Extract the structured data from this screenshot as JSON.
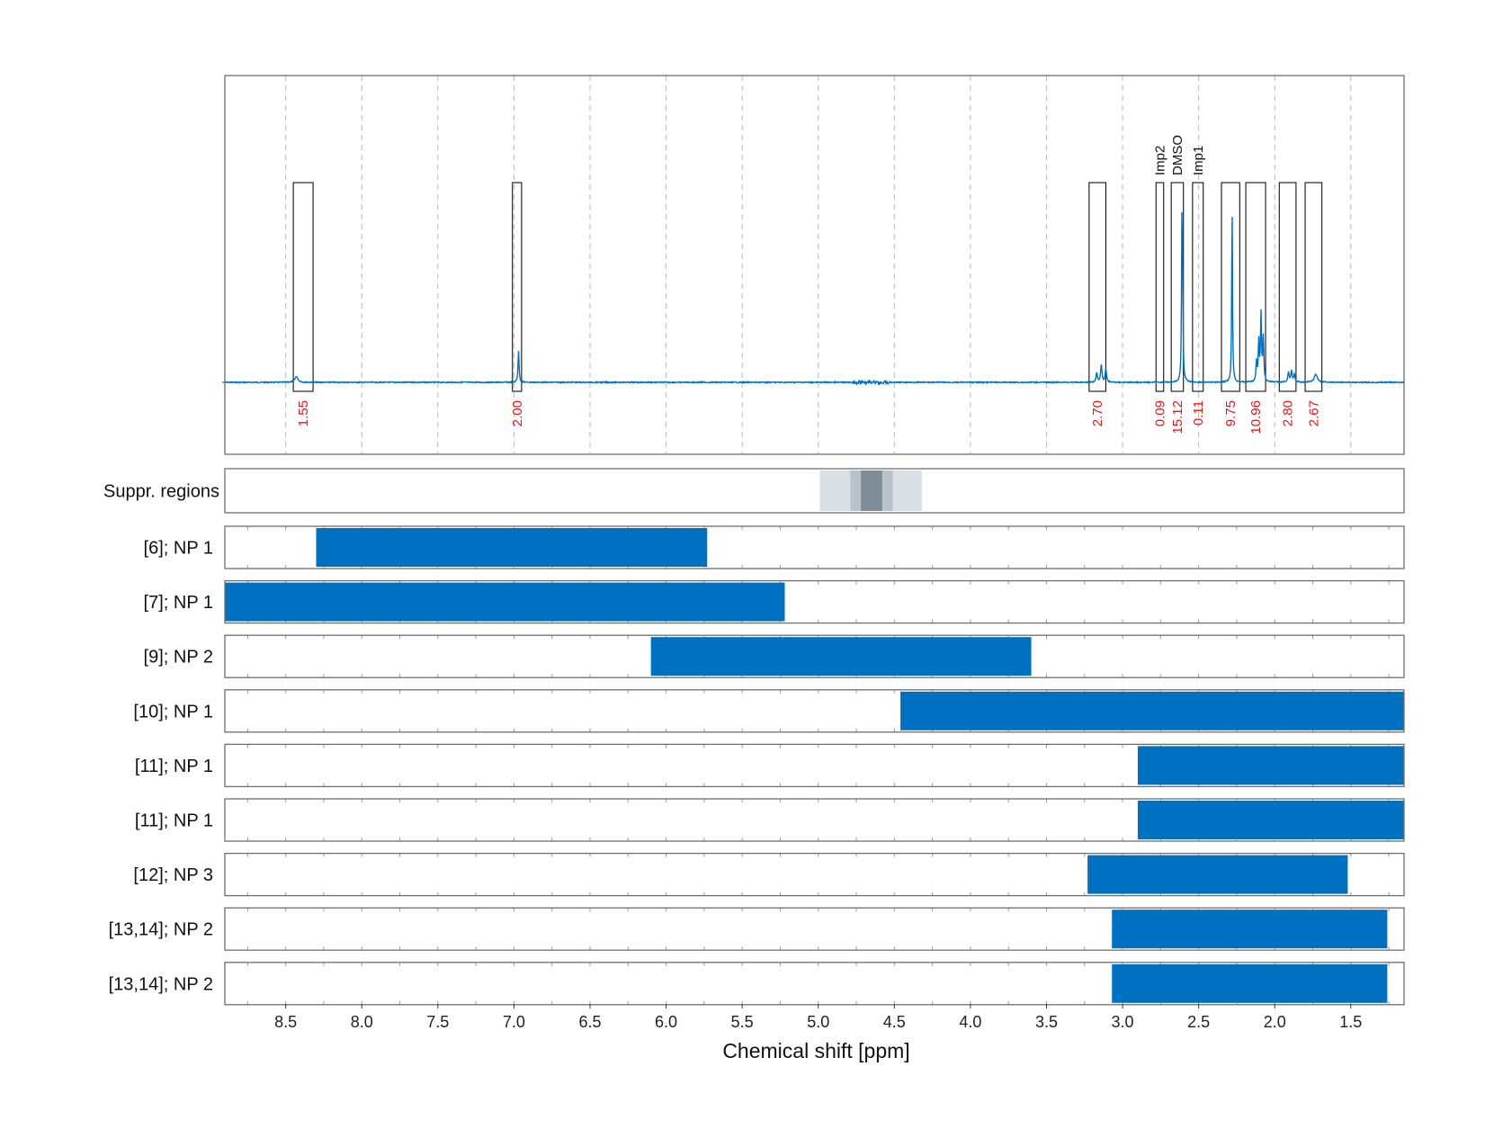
{
  "chart_data": {
    "type": "nmr-spectrum-with-range-bars",
    "xlabel": "Chemical shift [ppm]",
    "xlim": [
      8.9,
      1.15
    ],
    "x_ticks": [
      8.5,
      8.0,
      7.5,
      7.0,
      6.5,
      6.0,
      5.5,
      5.0,
      4.5,
      4.0,
      3.5,
      3.0,
      2.5,
      2.0,
      1.5
    ],
    "x_tick_labels": [
      "8.5",
      "8.0",
      "7.5",
      "7.0",
      "6.5",
      "6.0",
      "5.5",
      "5.0",
      "4.5",
      "4.0",
      "3.5",
      "3.0",
      "2.5",
      "2.0",
      "1.5"
    ],
    "grid": "vertical dashed",
    "series_color": "#0070c0",
    "spectrum_peaks": [
      {
        "ppm": 8.43,
        "height": 0.03,
        "width": 0.012
      },
      {
        "ppm": 6.97,
        "height": 0.16,
        "width": 0.004
      },
      {
        "ppm": 3.14,
        "height": 0.09,
        "width": 0.005
      },
      {
        "ppm": 3.11,
        "height": 0.07,
        "width": 0.005
      },
      {
        "ppm": 3.17,
        "height": 0.05,
        "width": 0.005
      },
      {
        "ppm": 2.61,
        "height": 0.75,
        "width": 0.003
      },
      {
        "ppm": 2.605,
        "height": 0.45,
        "width": 0.003
      },
      {
        "ppm": 2.28,
        "height": 0.91,
        "width": 0.003
      },
      {
        "ppm": 2.09,
        "height": 0.34,
        "width": 0.004
      },
      {
        "ppm": 2.075,
        "height": 0.22,
        "width": 0.004
      },
      {
        "ppm": 2.105,
        "height": 0.2,
        "width": 0.004
      },
      {
        "ppm": 2.12,
        "height": 0.1,
        "width": 0.004
      },
      {
        "ppm": 1.89,
        "height": 0.06,
        "width": 0.005
      },
      {
        "ppm": 1.91,
        "height": 0.05,
        "width": 0.005
      },
      {
        "ppm": 1.87,
        "height": 0.04,
        "width": 0.005
      },
      {
        "ppm": 1.73,
        "height": 0.04,
        "width": 0.012
      }
    ],
    "integration_regions": [
      {
        "from": 8.45,
        "to": 8.32,
        "integral": "1.55",
        "label": ""
      },
      {
        "from": 7.01,
        "to": 6.95,
        "integral": "2.00",
        "label": ""
      },
      {
        "from": 3.22,
        "to": 3.11,
        "integral": "2.70",
        "label": ""
      },
      {
        "from": 2.78,
        "to": 2.73,
        "integral": "0.09",
        "label": "Imp2"
      },
      {
        "from": 2.68,
        "to": 2.6,
        "integral": "15.12",
        "label": "DMSO"
      },
      {
        "from": 2.54,
        "to": 2.47,
        "integral": "0.11",
        "label": "Imp1"
      },
      {
        "from": 2.35,
        "to": 2.23,
        "integral": "9.75",
        "label": ""
      },
      {
        "from": 2.19,
        "to": 2.06,
        "integral": "10.96",
        "label": ""
      },
      {
        "from": 1.97,
        "to": 1.86,
        "integral": "2.80",
        "label": ""
      },
      {
        "from": 1.8,
        "to": 1.69,
        "integral": "2.67",
        "label": ""
      }
    ],
    "suppressed_regions": {
      "label": "Suppr. regions",
      "bands": [
        {
          "from": 4.99,
          "to": 4.32,
          "color": "#d8dfe5"
        },
        {
          "from": 4.79,
          "to": 4.51,
          "color": "#b7c3cc"
        },
        {
          "from": 4.72,
          "to": 4.58,
          "color": "#7d8c96"
        }
      ]
    },
    "range_rows": [
      {
        "label": "[6]; NP 1",
        "from": 8.3,
        "to": 5.73
      },
      {
        "label": "[7]; NP 1",
        "from": 8.9,
        "to": 5.22
      },
      {
        "label": "[9]; NP 2",
        "from": 6.1,
        "to": 3.6
      },
      {
        "label": "[10]; NP 1",
        "from": 4.46,
        "to": 1.15
      },
      {
        "label": "[11]; NP 1",
        "from": 2.9,
        "to": 1.15
      },
      {
        "label": "[11]; NP 1",
        "from": 2.9,
        "to": 1.15
      },
      {
        "label": "[12]; NP 3",
        "from": 3.23,
        "to": 1.52
      },
      {
        "label": "[13,14]; NP 2",
        "from": 3.07,
        "to": 1.26
      },
      {
        "label": "[13,14]; NP 2",
        "from": 3.07,
        "to": 1.26
      }
    ]
  }
}
